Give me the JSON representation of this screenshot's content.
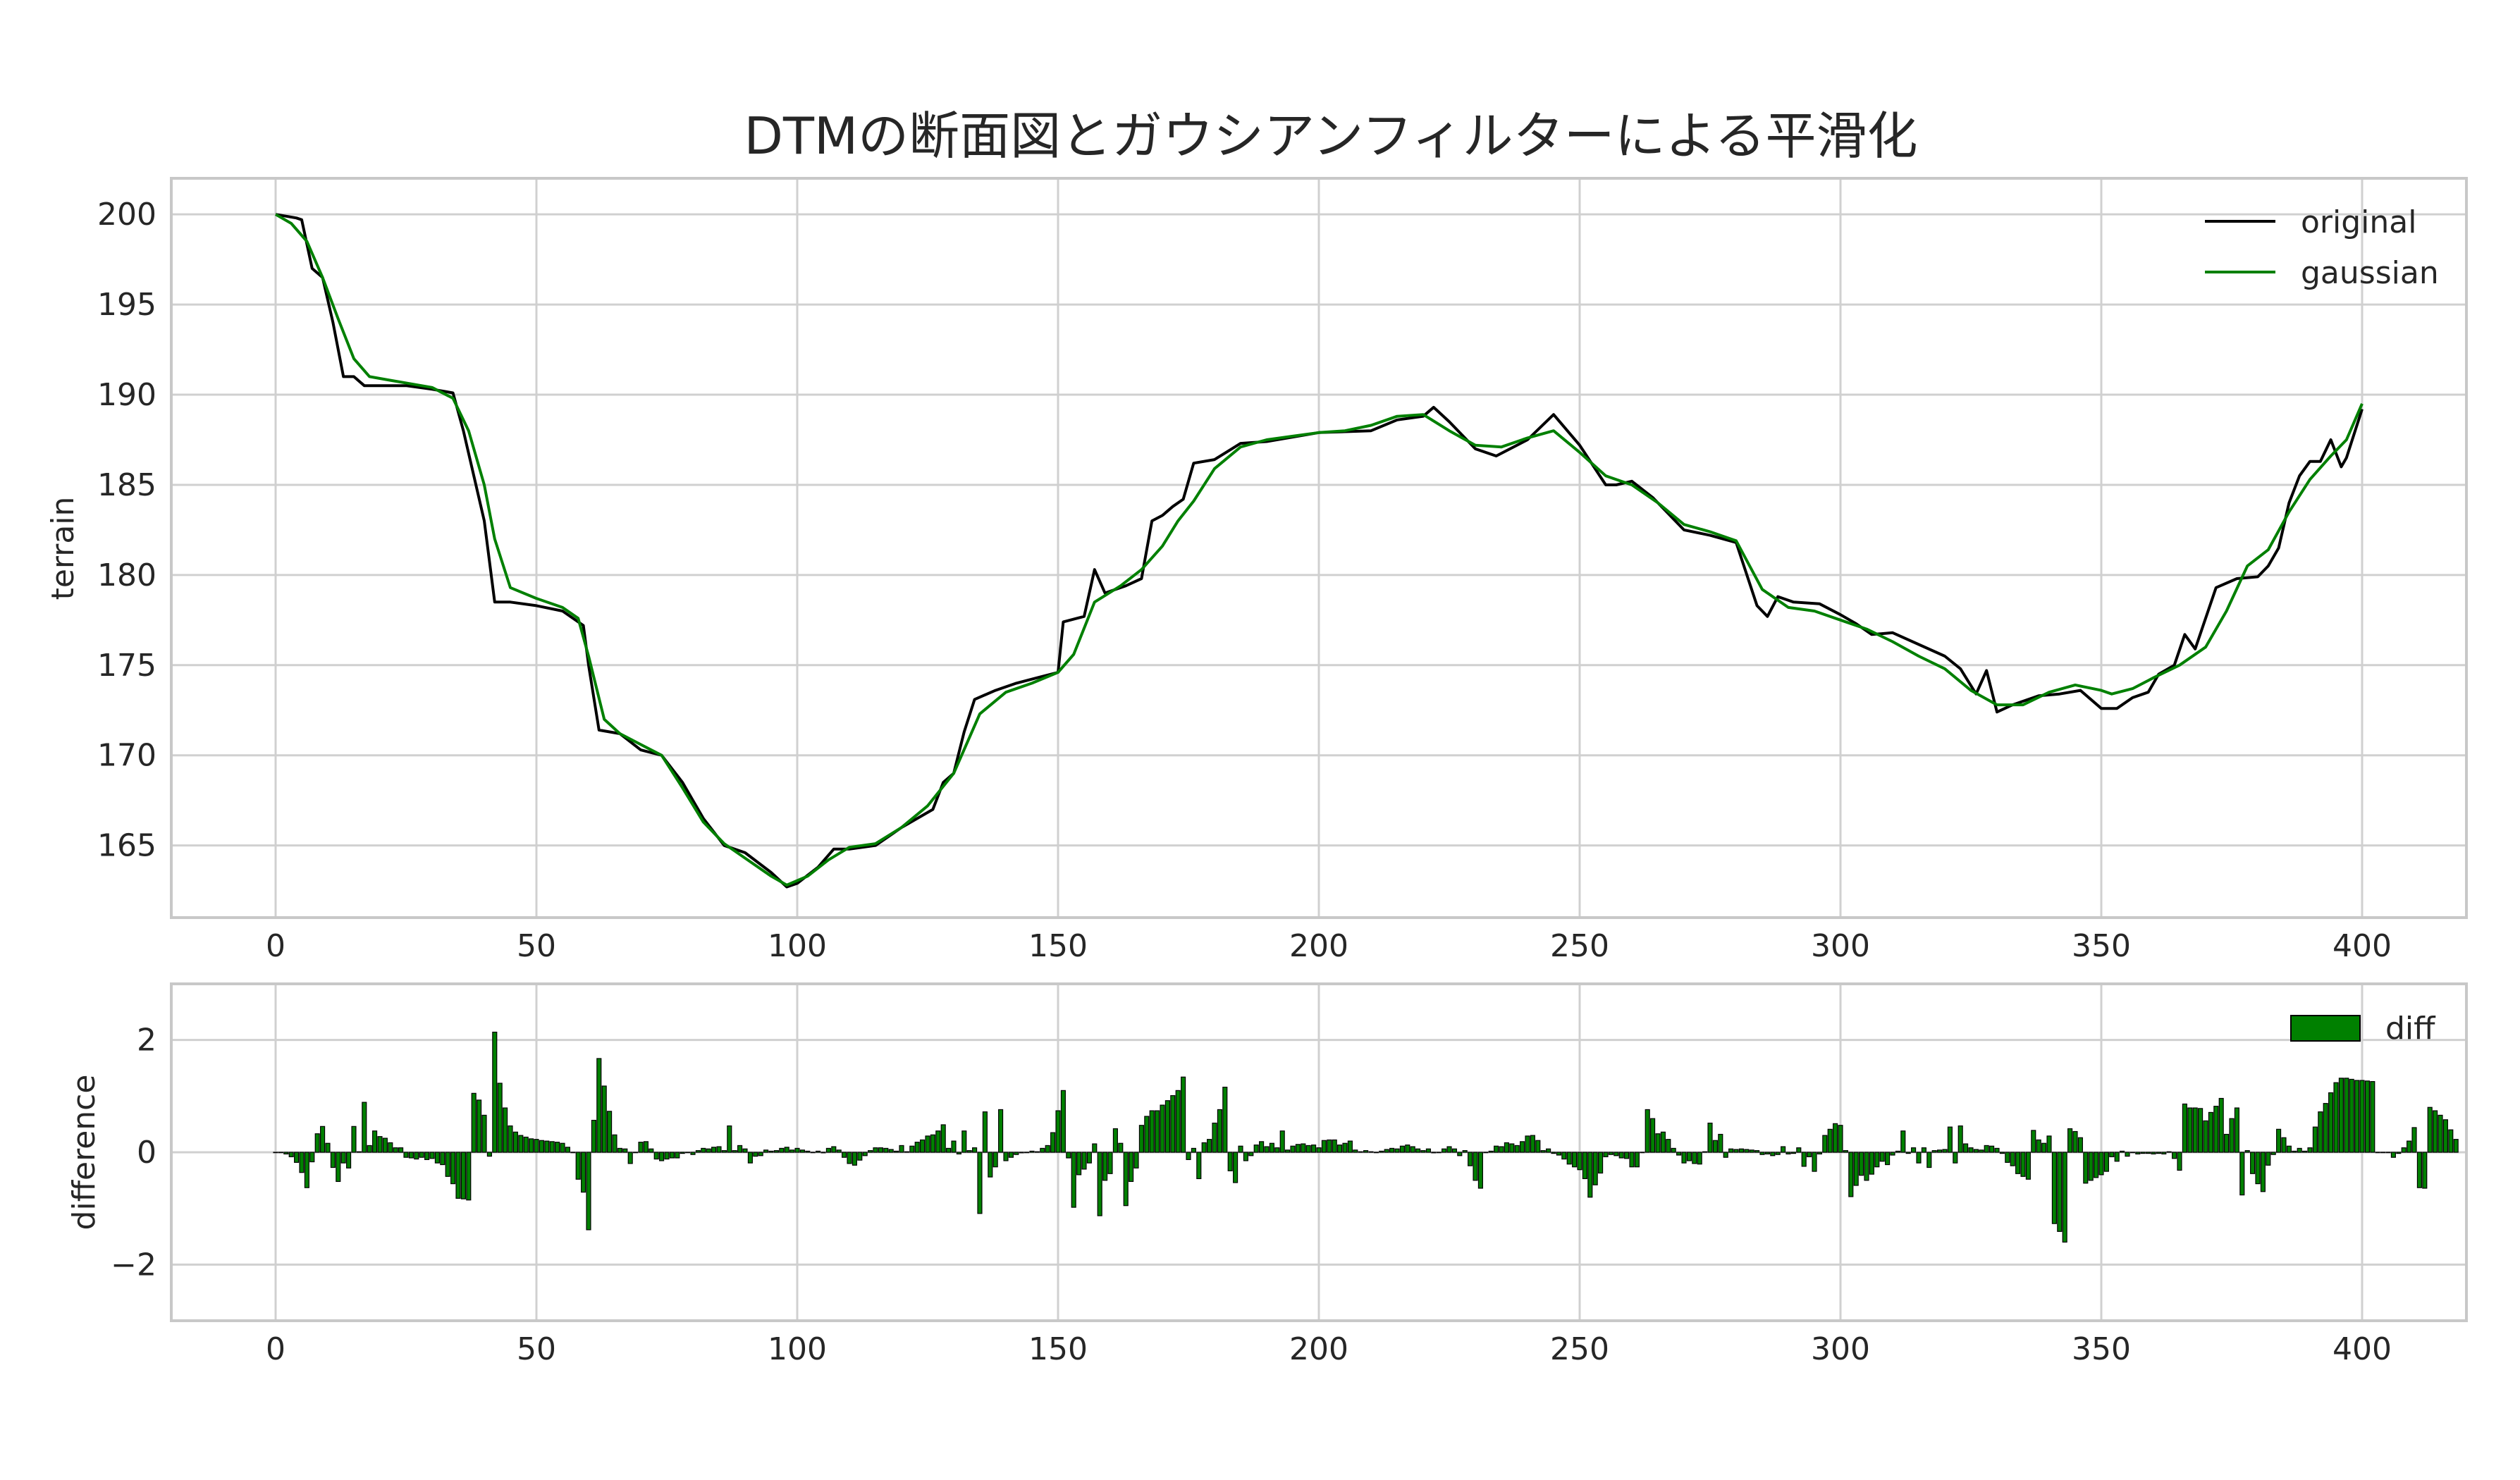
{
  "chart_data": [
    {
      "type": "line",
      "title": "DTMの断面図とガウシアンフィルターによる平滑化",
      "xlabel": "",
      "ylabel": "terrain",
      "xlim": [
        -20,
        420
      ],
      "ylim": [
        161,
        202
      ],
      "x_ticks": [
        0,
        50,
        100,
        150,
        200,
        250,
        300,
        350,
        400
      ],
      "y_ticks": [
        165,
        170,
        175,
        180,
        185,
        190,
        195,
        200
      ],
      "grid": true,
      "legend": "top-right",
      "series": [
        {
          "name": "original",
          "color": "#000000",
          "x": [
            0,
            4,
            5,
            7,
            9,
            11,
            13,
            15,
            17,
            20,
            25,
            30,
            34,
            36,
            38,
            40,
            42,
            45,
            50,
            55,
            59,
            60,
            62,
            66,
            70,
            74,
            78,
            82,
            86,
            90,
            95,
            98,
            100,
            104,
            107,
            110,
            115,
            120,
            126,
            128,
            130,
            132,
            134,
            138,
            142,
            146,
            150,
            151,
            155,
            157,
            159,
            163,
            166,
            168,
            170,
            172,
            174,
            176,
            180,
            185,
            190,
            200,
            210,
            215,
            220,
            222,
            225,
            230,
            234,
            240,
            245,
            250,
            255,
            257,
            260,
            264,
            270,
            275,
            280,
            284,
            286,
            288,
            291,
            296,
            300,
            303,
            306,
            310,
            320,
            323,
            326,
            328,
            330,
            333,
            338,
            342,
            346,
            350,
            353,
            356,
            359,
            361,
            364,
            366,
            368,
            372,
            376,
            380,
            382,
            384,
            386,
            388,
            390,
            392,
            394,
            396,
            397,
            400
          ],
          "y": [
            200,
            199.8,
            199.7,
            197,
            196.5,
            194,
            191,
            191,
            190.5,
            190.5,
            190.5,
            190.3,
            190.1,
            188,
            185.5,
            183,
            178.5,
            178.5,
            178.3,
            178,
            177.2,
            175,
            171.4,
            171.2,
            170.3,
            170,
            168.5,
            166.5,
            165,
            164.6,
            163.5,
            162.7,
            162.9,
            163.8,
            164.8,
            164.8,
            165,
            166,
            167,
            168.5,
            169,
            171.3,
            173.1,
            173.6,
            174,
            174.3,
            174.6,
            177.4,
            177.7,
            180.3,
            179,
            179.4,
            179.8,
            183,
            183.3,
            183.8,
            184.2,
            186.2,
            186.4,
            187.3,
            187.4,
            187.9,
            188,
            188.6,
            188.8,
            189.3,
            188.5,
            187,
            186.6,
            187.5,
            188.9,
            187.2,
            185,
            185,
            185.2,
            184.3,
            182.5,
            182.2,
            181.8,
            178.3,
            177.7,
            178.8,
            178.5,
            178.4,
            177.8,
            177.3,
            176.7,
            176.8,
            175.5,
            174.8,
            173.4,
            174.7,
            172.4,
            172.8,
            173.3,
            173.4,
            173.6,
            172.6,
            172.6,
            173.2,
            173.5,
            174.5,
            175,
            176.7,
            175.9,
            179.3,
            179.8,
            179.9,
            180.5,
            181.5,
            184,
            185.5,
            186.3,
            186.3,
            187.5,
            186,
            186.5,
            189.2
          ]
        },
        {
          "name": "gaussian",
          "color": "#008000",
          "x": [
            0,
            3,
            6,
            9,
            12,
            15,
            18,
            22,
            26,
            30,
            34,
            37,
            40,
            42,
            45,
            50,
            55,
            58,
            60,
            63,
            66,
            70,
            74,
            78,
            82,
            86,
            90,
            95,
            98,
            102,
            106,
            110,
            115,
            120,
            125,
            130,
            135,
            140,
            145,
            150,
            153,
            157,
            162,
            166,
            170,
            173,
            176,
            180,
            185,
            190,
            195,
            200,
            205,
            210,
            215,
            220,
            225,
            230,
            235,
            240,
            245,
            250,
            255,
            260,
            265,
            270,
            275,
            280,
            285,
            290,
            295,
            300,
            305,
            310,
            315,
            320,
            325,
            330,
            335,
            340,
            345,
            350,
            352,
            356,
            360,
            365,
            370,
            374,
            378,
            382,
            386,
            390,
            394,
            397,
            400
          ],
          "y": [
            200,
            199.5,
            198.5,
            196.5,
            194.2,
            192,
            191,
            190.8,
            190.6,
            190.4,
            189.8,
            188,
            185,
            182,
            179.3,
            178.7,
            178.2,
            177.6,
            175.5,
            172,
            171.2,
            170.6,
            170,
            168.2,
            166.3,
            165.1,
            164.3,
            163.3,
            162.8,
            163.3,
            164.2,
            164.9,
            165.1,
            166,
            167.2,
            169,
            172.3,
            173.5,
            174,
            174.6,
            175.6,
            178.5,
            179.4,
            180.3,
            181.6,
            183,
            184.1,
            185.9,
            187.1,
            187.5,
            187.7,
            187.9,
            188,
            188.3,
            188.8,
            188.9,
            188,
            187.2,
            187.1,
            187.6,
            188,
            186.8,
            185.5,
            185,
            184,
            182.8,
            182.4,
            181.9,
            179.2,
            178.2,
            178,
            177.5,
            177,
            176.3,
            175.5,
            174.8,
            173.6,
            172.8,
            172.8,
            173.5,
            173.9,
            173.6,
            173.4,
            173.7,
            174.3,
            175,
            176,
            178,
            180.5,
            181.4,
            183.5,
            185.3,
            186.6,
            187.5,
            189.5
          ]
        }
      ]
    },
    {
      "type": "bar",
      "title": "",
      "xlabel": "",
      "ylabel": "difference",
      "xlim": [
        -20,
        420
      ],
      "ylim": [
        -3,
        3
      ],
      "x_ticks": [
        0,
        50,
        100,
        150,
        200,
        250,
        300,
        350,
        400
      ],
      "y_ticks": [
        -2,
        0,
        2
      ],
      "y_tick_labels": [
        "−2",
        "0",
        "2"
      ],
      "grid": true,
      "legend": "top-right",
      "series": [
        {
          "name": "diff",
          "color": "#008000",
          "x_start": 0,
          "x_step": 1,
          "values": [
            0.0,
            0.0,
            -0.03,
            -0.08,
            -0.18,
            -0.36,
            -0.63,
            -0.17,
            0.33,
            0.46,
            0.16,
            -0.27,
            -0.52,
            -0.19,
            -0.28,
            0.46,
            0.01,
            0.89,
            0.12,
            0.38,
            0.28,
            0.25,
            0.17,
            0.08,
            0.08,
            -0.09,
            -0.1,
            -0.12,
            -0.09,
            -0.13,
            -0.11,
            -0.19,
            -0.22,
            -0.43,
            -0.56,
            -0.82,
            -0.83,
            -0.85,
            1.05,
            0.93,
            0.66,
            -0.07,
            2.14,
            1.23,
            0.79,
            0.47,
            0.36,
            0.3,
            0.27,
            0.24,
            0.23,
            0.21,
            0.2,
            0.19,
            0.18,
            0.16,
            0.09,
            0.0,
            -0.48,
            -0.71,
            -1.38,
            0.57,
            1.67,
            1.18,
            0.73,
            0.31,
            0.07,
            0.06,
            -0.2,
            0.0,
            0.18,
            0.19,
            0.06,
            -0.12,
            -0.15,
            -0.12,
            -0.1,
            -0.1,
            -0.02,
            0.0,
            -0.04,
            0.03,
            0.07,
            0.06,
            0.09,
            0.1,
            0.03,
            0.47,
            0.03,
            0.12,
            0.06,
            -0.19,
            -0.07,
            -0.06,
            0.04,
            0.02,
            0.03,
            0.07,
            0.09,
            0.04,
            0.07,
            0.04,
            0.02,
            0.0,
            0.02,
            -0.01,
            0.07,
            0.1,
            0.04,
            -0.09,
            -0.2,
            -0.23,
            -0.14,
            -0.06,
            0.03,
            0.08,
            0.08,
            0.07,
            0.05,
            0.02,
            0.12,
            0.01,
            0.11,
            0.18,
            0.22,
            0.29,
            0.31,
            0.38,
            0.49,
            0.07,
            0.2,
            -0.03,
            0.38,
            0.03,
            0.08,
            -1.09,
            0.72,
            -0.44,
            -0.26,
            0.76,
            -0.15,
            -0.09,
            -0.04,
            -0.01,
            0.0,
            0.02,
            0.01,
            0.07,
            0.12,
            0.35,
            0.74,
            1.1,
            -0.1,
            -0.98,
            -0.4,
            -0.3,
            -0.19,
            0.15,
            -1.13,
            -0.5,
            -0.38,
            0.42,
            0.16,
            -0.95,
            -0.52,
            -0.28,
            0.48,
            0.64,
            0.74,
            0.74,
            0.84,
            0.92,
            1.01,
            1.1,
            1.34,
            -0.13,
            0.07,
            -0.47,
            0.17,
            0.23,
            0.52,
            0.76,
            1.16,
            -0.33,
            -0.54,
            0.11,
            -0.15,
            -0.06,
            0.13,
            0.19,
            0.1,
            0.16,
            0.08,
            0.38,
            0.04,
            0.11,
            0.14,
            0.15,
            0.12,
            0.13,
            0.08,
            0.21,
            0.22,
            0.22,
            0.13,
            0.16,
            0.2,
            0.04,
            0.01,
            0.03,
            0.01,
            0.0,
            0.02,
            0.05,
            0.07,
            0.06,
            0.11,
            0.13,
            0.1,
            0.06,
            0.03,
            0.06,
            -0.01,
            0.0,
            0.06,
            0.1,
            0.06,
            -0.06,
            0.03,
            -0.24,
            -0.5,
            -0.64,
            0.0,
            0.02,
            0.11,
            0.1,
            0.17,
            0.15,
            0.12,
            0.19,
            0.29,
            0.3,
            0.21,
            0.03,
            0.06,
            -0.02,
            -0.05,
            -0.12,
            -0.21,
            -0.26,
            -0.31,
            -0.47,
            -0.8,
            -0.58,
            -0.37,
            -0.08,
            -0.04,
            -0.06,
            -0.1,
            -0.11,
            -0.26,
            -0.26,
            0.0,
            0.76,
            0.6,
            0.33,
            0.36,
            0.23,
            0.07,
            -0.05,
            -0.19,
            -0.15,
            -0.2,
            -0.21,
            0.01,
            0.52,
            0.21,
            0.32,
            -0.09,
            0.06,
            0.05,
            0.06,
            0.05,
            0.04,
            0.03,
            -0.04,
            -0.03,
            -0.06,
            -0.04,
            0.1,
            -0.03,
            -0.02,
            0.08,
            -0.25,
            -0.08,
            -0.34,
            -0.03,
            0.3,
            0.41,
            0.51,
            0.48,
            0.03,
            -0.79,
            -0.59,
            -0.41,
            -0.5,
            -0.39,
            -0.26,
            -0.16,
            -0.22,
            -0.05,
            0.02,
            0.38,
            -0.02,
            0.08,
            -0.19,
            0.08,
            -0.27,
            0.03,
            0.04,
            0.05,
            0.45,
            -0.19,
            0.47,
            0.15,
            0.08,
            0.05,
            0.04,
            0.12,
            0.11,
            0.07,
            -0.02,
            -0.18,
            -0.24,
            -0.38,
            -0.43,
            -0.48,
            0.39,
            0.22,
            0.16,
            0.29,
            -1.27,
            -1.41,
            -1.6,
            0.42,
            0.37,
            0.26,
            -0.55,
            -0.5,
            -0.45,
            -0.4,
            -0.34,
            -0.08,
            -0.16,
            0.02,
            -0.07,
            0.0,
            -0.03,
            -0.02,
            -0.02,
            -0.03,
            -0.02,
            -0.03,
            0.01,
            -0.11,
            -0.32,
            0.86,
            0.79,
            0.79,
            0.78,
            0.56,
            0.71,
            0.82,
            0.96,
            0.32,
            0.6,
            0.79,
            -0.76,
            0.03,
            -0.38,
            -0.56,
            -0.7,
            -0.23,
            -0.04,
            0.41,
            0.26,
            0.11,
            0.02,
            0.07,
            0.02,
            0.08,
            0.45,
            0.72,
            0.87,
            1.06,
            1.24,
            1.32,
            1.32,
            1.3,
            1.28,
            1.28,
            1.27,
            1.26,
            0.0,
            0.0,
            0.0,
            -0.09,
            -0.02,
            0.08,
            0.2,
            0.44,
            -0.63,
            -0.64,
            0.8,
            0.74,
            0.66,
            0.58,
            0.4,
            0.23
          ]
        }
      ]
    }
  ]
}
